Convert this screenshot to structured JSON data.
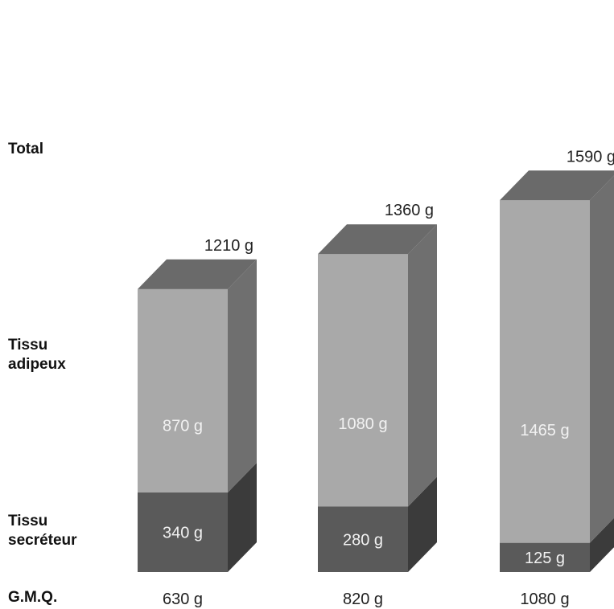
{
  "row_labels": {
    "total": "Total",
    "adipose_line1": "Tissu",
    "adipose_line2": "adipeux",
    "secretory_line1": "Tissu",
    "secretory_line2": "secréteur",
    "gmq": "G.M.Q."
  },
  "colors": {
    "front_adipose": "#a9a9a9",
    "side_adipose": "#6f6f6f",
    "top": "#6a6a6a",
    "front_secretory": "#5a5a5a",
    "side_secretory": "#3b3b3b",
    "value_text_on_bar": "#f2f2f2",
    "text": "#222222"
  },
  "chart_data": {
    "type": "bar",
    "stacked": true,
    "categories": [
      "630 g",
      "820 g",
      "1080 g"
    ],
    "series": [
      {
        "name": "Tissu secréteur",
        "values": [
          340,
          280,
          125
        ],
        "labels": [
          "340 g",
          "280 g",
          "125 g"
        ]
      },
      {
        "name": "Tissu adipeux",
        "values": [
          870,
          1080,
          1465
        ],
        "labels": [
          "870 g",
          "1080 g",
          "1465 g"
        ]
      }
    ],
    "totals": [
      1210,
      1360,
      1590
    ],
    "total_labels": [
      "1210 g",
      "1360 g",
      "1590 g"
    ],
    "x_row_title": "G.M.Q.",
    "grid": false,
    "legend": "none",
    "style": "3d-columns"
  }
}
